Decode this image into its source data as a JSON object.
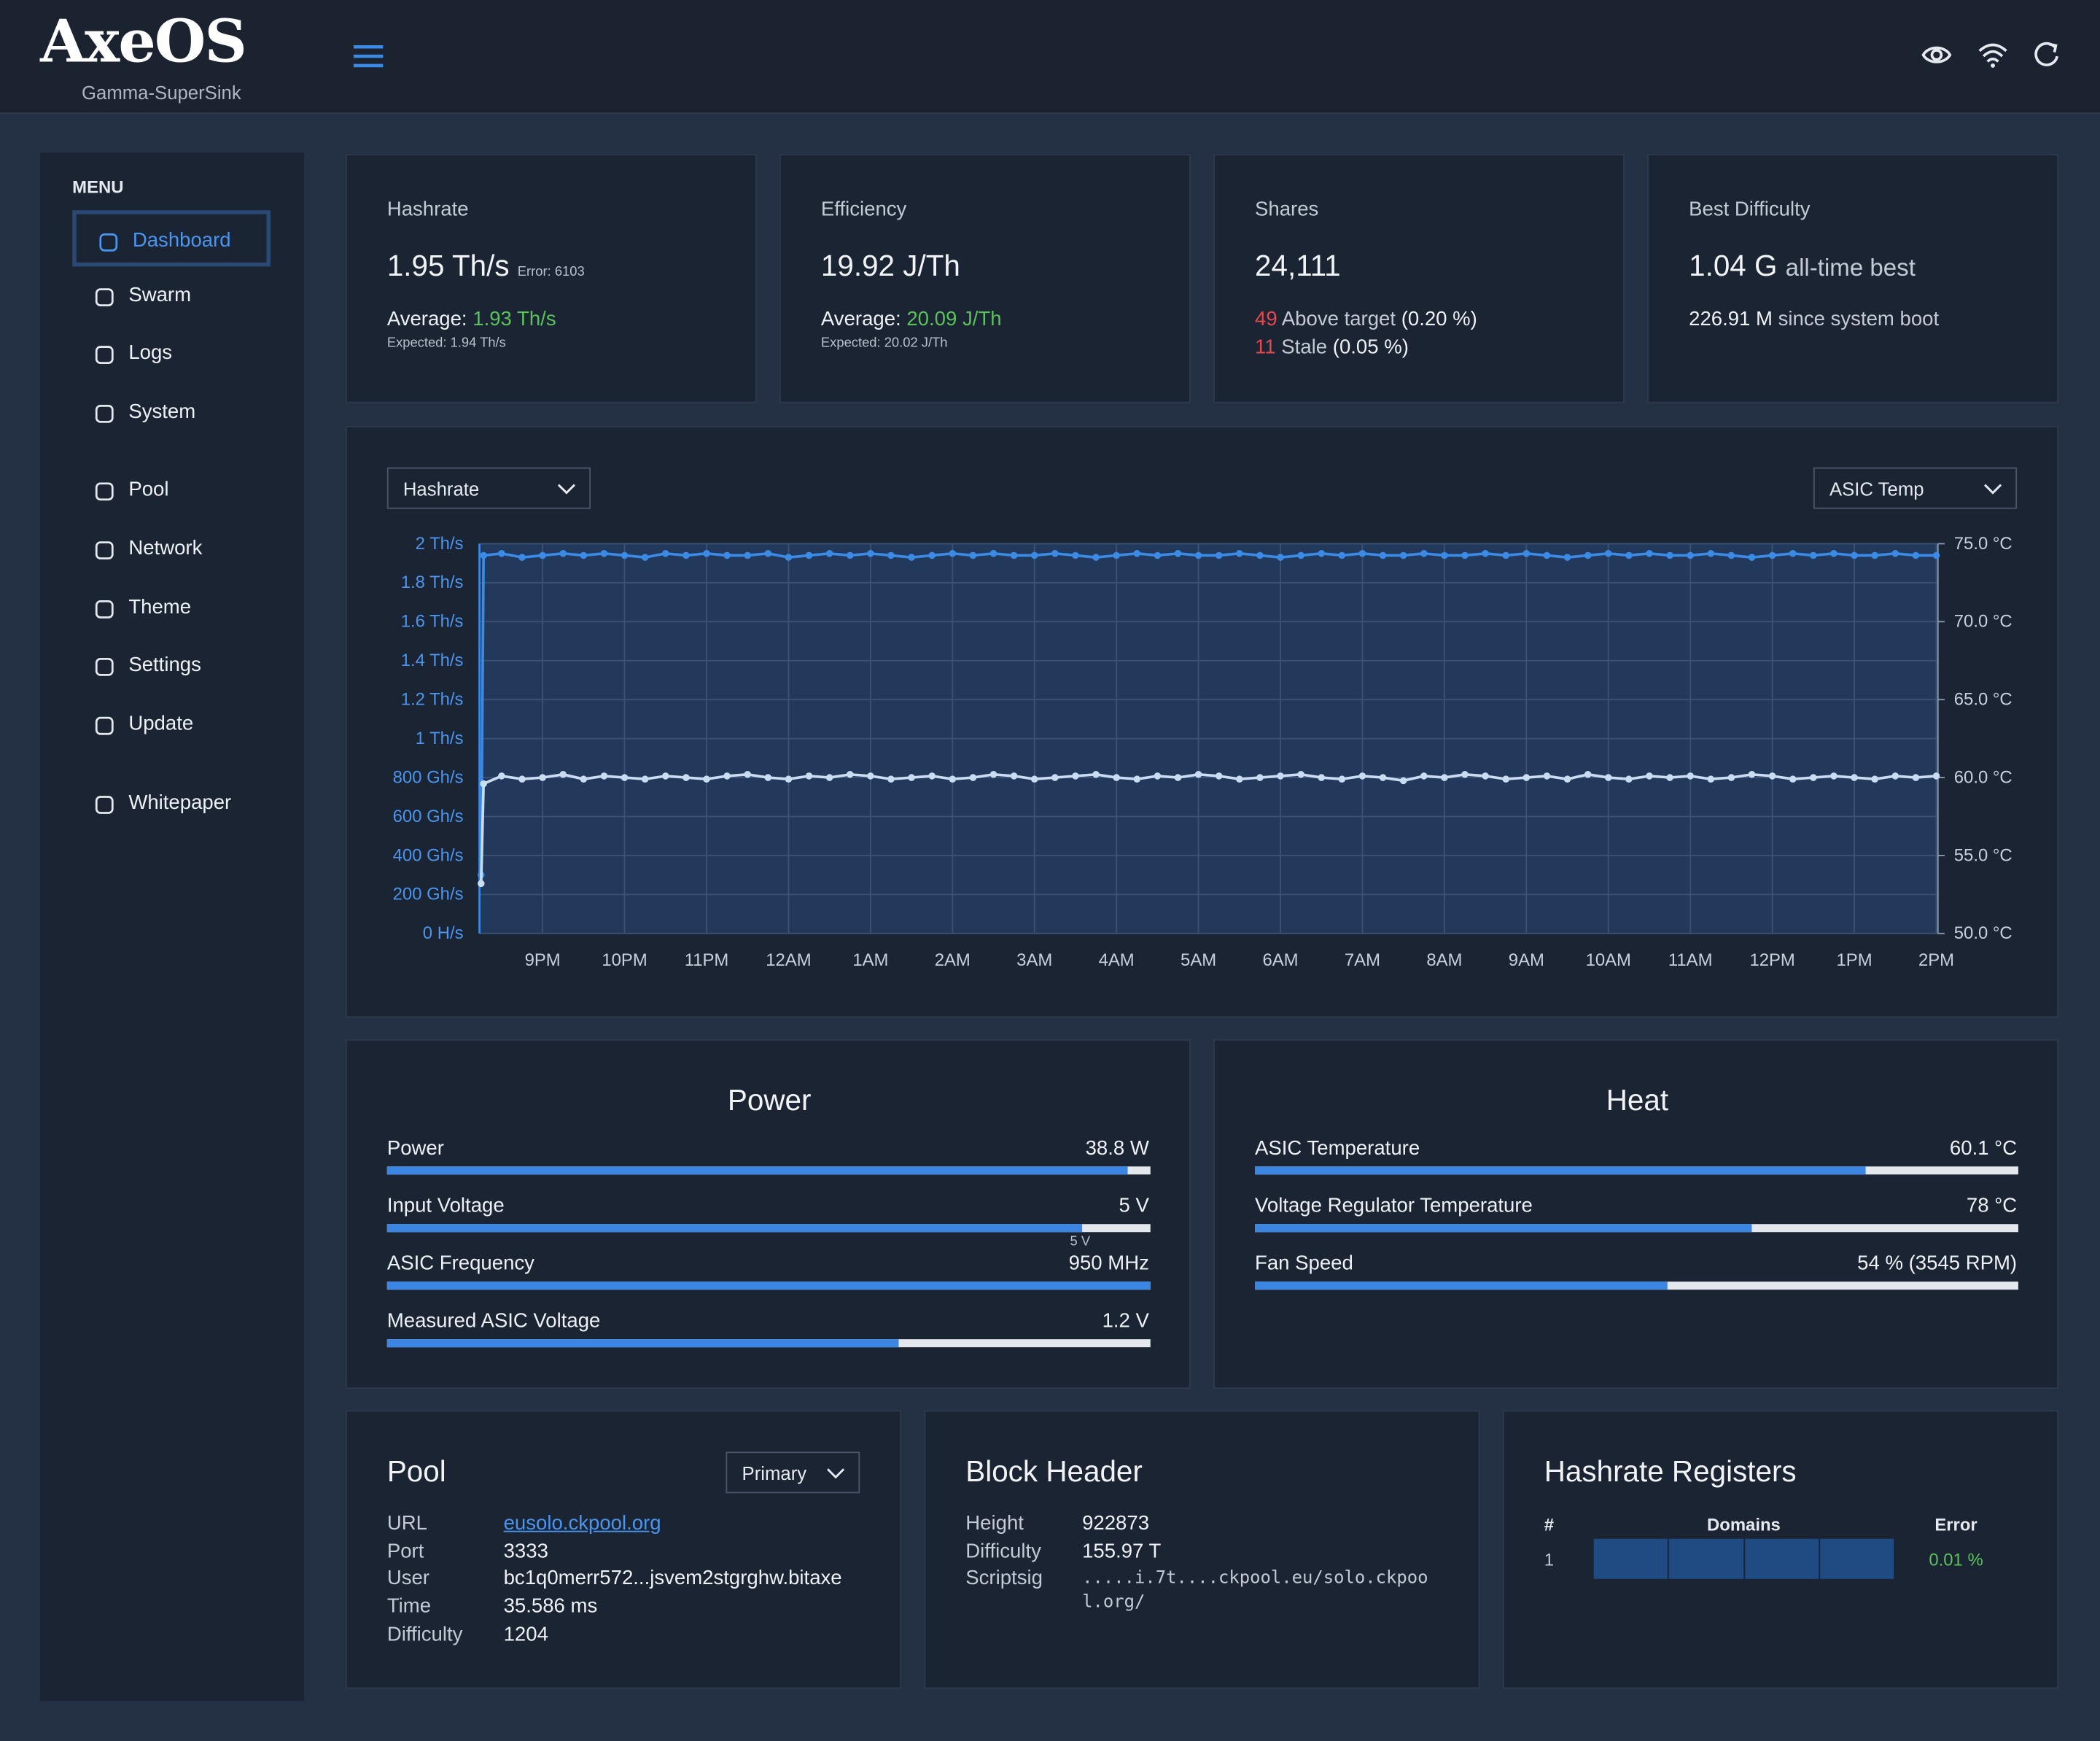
{
  "header": {
    "logo": "AxeOS",
    "device": "Gamma-SuperSink"
  },
  "menu": {
    "title": "MENU",
    "items": [
      "Dashboard",
      "Swarm",
      "Logs",
      "System",
      "Pool",
      "Network",
      "Theme",
      "Settings",
      "Update",
      "Whitepaper"
    ]
  },
  "stats": [
    {
      "title": "Hashrate",
      "value": "1.95 Th/s",
      "note": "Error: 6103",
      "average_label": "Average:",
      "average": "1.93 Th/s",
      "expected": "Expected: 1.94 Th/s"
    },
    {
      "title": "Efficiency",
      "value": "19.92 J/Th",
      "average_label": "Average:",
      "average": "20.09 J/Th",
      "expected": "Expected: 20.02 J/Th"
    },
    {
      "title": "Shares",
      "value": "24,111",
      "lines": [
        {
          "count": "49",
          "text": "Above target",
          "pct": "(0.20 %)"
        },
        {
          "count": "11",
          "text": "Stale",
          "pct": "(0.05 %)"
        }
      ]
    },
    {
      "title": "Best Difficulty",
      "value": "1.04 G",
      "note": "all-time best",
      "line": "226.91 M",
      "line_note": "since system boot"
    }
  ],
  "chart_data": {
    "type": "line",
    "x": [
      20.25,
      20.28,
      20.5,
      20.75,
      21,
      21.25,
      21.5,
      21.75,
      22,
      22.25,
      22.5,
      22.75,
      23,
      23.25,
      23.5,
      23.75,
      24,
      24.25,
      24.5,
      24.75,
      25,
      25.25,
      25.5,
      25.75,
      26,
      26.25,
      26.5,
      26.75,
      27,
      27.25,
      27.5,
      27.75,
      28,
      28.25,
      28.5,
      28.75,
      29,
      29.25,
      29.5,
      29.75,
      30,
      30.25,
      30.5,
      30.75,
      31,
      31.25,
      31.5,
      31.75,
      32,
      32.25,
      32.5,
      32.75,
      33,
      33.25,
      33.5,
      33.75,
      34,
      34.25,
      34.5,
      34.75,
      35,
      35.25,
      35.5,
      35.75,
      36,
      36.25,
      36.5,
      36.75,
      37,
      37.25,
      37.5,
      37.75,
      38
    ],
    "series": [
      {
        "name": "Hashrate",
        "color": "#3b8ae6",
        "values": [
          0.3,
          1.94,
          1.95,
          1.93,
          1.94,
          1.95,
          1.94,
          1.95,
          1.94,
          1.93,
          1.95,
          1.94,
          1.95,
          1.94,
          1.94,
          1.95,
          1.93,
          1.94,
          1.95,
          1.94,
          1.95,
          1.94,
          1.93,
          1.94,
          1.95,
          1.94,
          1.95,
          1.94,
          1.94,
          1.95,
          1.94,
          1.93,
          1.94,
          1.95,
          1.94,
          1.95,
          1.94,
          1.94,
          1.95,
          1.94,
          1.93,
          1.94,
          1.95,
          1.94,
          1.95,
          1.94,
          1.94,
          1.95,
          1.94,
          1.94,
          1.95,
          1.94,
          1.95,
          1.94,
          1.93,
          1.94,
          1.95,
          1.94,
          1.95,
          1.94,
          1.94,
          1.95,
          1.94,
          1.93,
          1.94,
          1.95,
          1.94,
          1.95,
          1.94,
          1.94,
          1.95,
          1.94,
          1.94
        ]
      },
      {
        "name": "ASIC Temp",
        "color": "#c9dcf2",
        "axis": "y2",
        "values": [
          53.2,
          59.6,
          60.1,
          59.9,
          60.0,
          60.2,
          59.9,
          60.1,
          60.0,
          59.9,
          60.1,
          60.0,
          59.9,
          60.1,
          60.2,
          60.0,
          59.9,
          60.1,
          60.0,
          60.2,
          60.1,
          59.9,
          60.0,
          60.1,
          59.9,
          60.0,
          60.2,
          60.1,
          59.9,
          60.0,
          60.1,
          60.2,
          60.0,
          59.9,
          60.1,
          60.0,
          60.2,
          60.1,
          59.9,
          60.0,
          60.1,
          60.2,
          60.0,
          59.9,
          60.1,
          60.0,
          59.8,
          60.1,
          60.0,
          60.2,
          60.1,
          59.9,
          60.0,
          60.1,
          59.9,
          60.2,
          60.0,
          59.9,
          60.1,
          60.0,
          60.1,
          59.9,
          60.0,
          60.2,
          60.1,
          59.9,
          60.0,
          60.1,
          60.0,
          59.9,
          60.1,
          60.0,
          60.1
        ]
      }
    ],
    "xlim": [
      20.23,
      38.02
    ],
    "xticks": [
      {
        "value": 21,
        "label": "9PM"
      },
      {
        "value": 22,
        "label": "10PM"
      },
      {
        "value": 23,
        "label": "11PM"
      },
      {
        "value": 24,
        "label": "12AM"
      },
      {
        "value": 25,
        "label": "1AM"
      },
      {
        "value": 26,
        "label": "2AM"
      },
      {
        "value": 27,
        "label": "3AM"
      },
      {
        "value": 28,
        "label": "4AM"
      },
      {
        "value": 29,
        "label": "5AM"
      },
      {
        "value": 30,
        "label": "6AM"
      },
      {
        "value": 31,
        "label": "7AM"
      },
      {
        "value": 32,
        "label": "8AM"
      },
      {
        "value": 33,
        "label": "9AM"
      },
      {
        "value": 34,
        "label": "10AM"
      },
      {
        "value": 35,
        "label": "11AM"
      },
      {
        "value": 36,
        "label": "12PM"
      },
      {
        "value": 37,
        "label": "1PM"
      },
      {
        "value": 38,
        "label": "2PM"
      }
    ],
    "ylim": [
      0,
      2
    ],
    "yticks": [
      {
        "value": 0,
        "label": "0 H/s"
      },
      {
        "value": 0.2,
        "label": "200 Gh/s"
      },
      {
        "value": 0.4,
        "label": "400 Gh/s"
      },
      {
        "value": 0.6,
        "label": "600 Gh/s"
      },
      {
        "value": 0.8,
        "label": "800 Gh/s"
      },
      {
        "value": 1,
        "label": "1 Th/s"
      },
      {
        "value": 1.2,
        "label": "1.2 Th/s"
      },
      {
        "value": 1.4,
        "label": "1.4 Th/s"
      },
      {
        "value": 1.6,
        "label": "1.6 Th/s"
      },
      {
        "value": 1.8,
        "label": "1.8 Th/s"
      },
      {
        "value": 2,
        "label": "2 Th/s"
      }
    ],
    "y2lim": [
      50,
      75
    ],
    "y2ticks": [
      {
        "value": 50,
        "label": "50.0 °C"
      },
      {
        "value": 55,
        "label": "55.0 °C"
      },
      {
        "value": 60,
        "label": "60.0 °C"
      },
      {
        "value": 65,
        "label": "65.0 °C"
      },
      {
        "value": 70,
        "label": "70.0 °C"
      },
      {
        "value": 75,
        "label": "75.0 °C"
      }
    ],
    "grid": true
  },
  "power": {
    "title": "Power",
    "rows": [
      {
        "label": "Power",
        "value": "38.8 W"
      },
      {
        "label": "Input Voltage",
        "value": "5 V"
      },
      {
        "label": "ASIC Frequency",
        "value": "950 MHz"
      },
      {
        "label": "Measured ASIC Voltage",
        "value": "1.2 V"
      }
    ],
    "marker": "5 V"
  },
  "heat": {
    "title": "Heat",
    "rows": [
      {
        "label": "ASIC Temperature",
        "value": "60.1 °C"
      },
      {
        "label": "Voltage Regulator Temperature",
        "value": "78 °C"
      },
      {
        "label": "Fan Speed",
        "value": "54 % (3545 RPM)"
      }
    ]
  },
  "pool": {
    "title": "Pool",
    "selector": "Primary",
    "rows": [
      [
        "URL",
        "eusolo.ckpool.org"
      ],
      [
        "Port",
        "3333"
      ],
      [
        "User",
        "bc1q0merr572...jsvem2stgrghw.bitaxe"
      ],
      [
        "Time",
        "35.586 ms"
      ],
      [
        "Difficulty",
        "1204"
      ]
    ]
  },
  "block_header": {
    "title": "Block Header",
    "rows": [
      [
        "Height",
        "922873"
      ],
      [
        "Difficulty",
        "155.97 T"
      ],
      [
        "Scriptsig",
        ".....i.7t....ckpool.eu/solo.ckpool.org/"
      ]
    ]
  },
  "registers": {
    "title": "Hashrate Registers",
    "columns": [
      "#",
      "Domains",
      "Error"
    ],
    "rows": [
      [
        "1",
        "0.01 %"
      ]
    ]
  }
}
